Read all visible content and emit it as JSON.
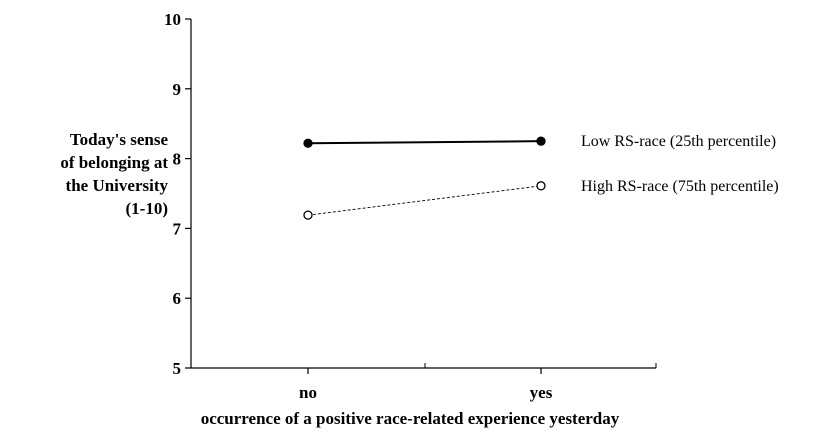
{
  "chart_data": {
    "type": "line",
    "categories": [
      "no",
      "yes"
    ],
    "series": [
      {
        "name": "Low RS-race (25th percentile)",
        "values": [
          8.22,
          8.25
        ],
        "marker": "filled-circle",
        "line": "solid",
        "color": "#000000"
      },
      {
        "name": "High RS-race (75th percentile)",
        "values": [
          7.19,
          7.61
        ],
        "marker": "open-circle",
        "line": "dashed",
        "color": "#000000"
      }
    ],
    "ylabel_lines": [
      "Today's sense",
      "of belonging at",
      "the University",
      "(1-10)"
    ],
    "xlabel": "occurrence of a positive race-related experience yesterday",
    "ylim": [
      5,
      10
    ],
    "yticks": [
      "5",
      "6",
      "7",
      "8",
      "9",
      "10"
    ],
    "grid": false,
    "legend_placement": "right, inline with lines"
  }
}
